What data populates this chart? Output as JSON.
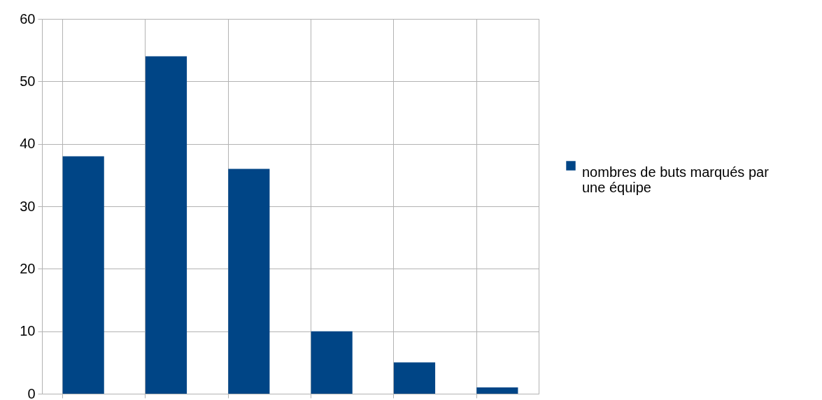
{
  "chart_data": {
    "type": "bar",
    "categories": [
      null,
      null,
      null,
      null,
      null,
      null
    ],
    "series": [
      {
        "name": "nombres de buts marqués par une équipe",
        "color": "#004586",
        "values": [
          38,
          54,
          36,
          10,
          5,
          1
        ]
      }
    ],
    "ylim": [
      0,
      60
    ],
    "yticks": [
      0,
      10,
      20,
      30,
      40,
      50,
      60
    ],
    "grid": true,
    "legend": "right"
  }
}
